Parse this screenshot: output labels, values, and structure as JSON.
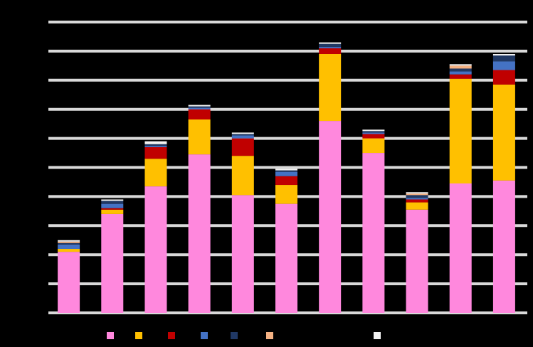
{
  "chart_data": {
    "type": "bar",
    "stacked": true,
    "title": "",
    "xlabel": "",
    "ylabel": "",
    "ylim": [
      0,
      10
    ],
    "grid": true,
    "legend_position": "bottom",
    "background": "#000000",
    "gridline_color": "#d9d9d9",
    "categories": [
      "",
      "",
      "",
      "",
      "",
      "",
      "",
      "",
      "",
      "",
      ""
    ],
    "series": [
      {
        "name": "",
        "color": "#ff88dd",
        "values": [
          2.1,
          3.4,
          4.35,
          5.45,
          4.05,
          3.75,
          6.6,
          5.5,
          3.55,
          4.45,
          4.55
        ]
      },
      {
        "name": "",
        "color": "#ffc000",
        "values": [
          0.1,
          0.15,
          0.95,
          1.2,
          1.35,
          0.65,
          2.3,
          0.5,
          0.25,
          3.6,
          3.3
        ]
      },
      {
        "name": "",
        "color": "#c00000",
        "values": [
          0.0,
          0.05,
          0.4,
          0.35,
          0.6,
          0.3,
          0.2,
          0.15,
          0.1,
          0.15,
          0.5
        ]
      },
      {
        "name": "",
        "color": "#4472c4",
        "values": [
          0.15,
          0.15,
          0.05,
          0.05,
          0.1,
          0.15,
          0.05,
          0.05,
          0.05,
          0.1,
          0.3
        ]
      },
      {
        "name": "",
        "color": "#203864",
        "values": [
          0.05,
          0.1,
          0.05,
          0.05,
          0.05,
          0.05,
          0.1,
          0.05,
          0.1,
          0.1,
          0.2
        ]
      },
      {
        "name": "",
        "color": "#f4b183",
        "values": [
          0.05,
          0.0,
          0.0,
          0.0,
          0.0,
          0.0,
          0.0,
          0.0,
          0.05,
          0.1,
          0.0
        ]
      },
      {
        "name": "",
        "color": "#f2f2f2",
        "values": [
          0.05,
          0.05,
          0.1,
          0.05,
          0.05,
          0.05,
          0.05,
          0.05,
          0.05,
          0.05,
          0.05
        ]
      }
    ]
  }
}
